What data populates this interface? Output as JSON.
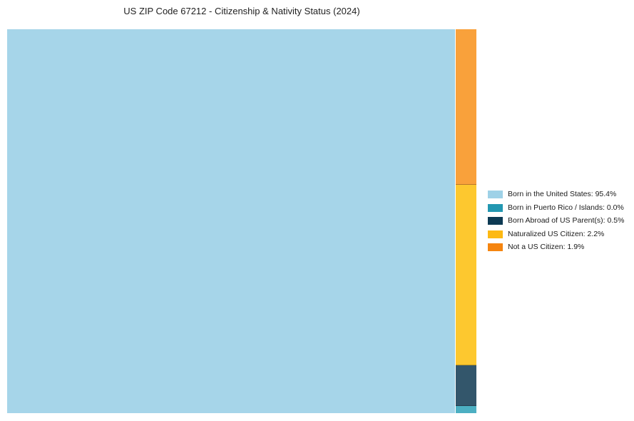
{
  "page": {
    "background": "#ffffff"
  },
  "chart_data": {
    "type": "treemap",
    "title": "US ZIP Code 67212 - Citizenship & Nativity Status (2024)",
    "legend_position": "right",
    "total_pct": 100,
    "items": [
      {
        "label": "Born in the United States",
        "value_pct": 95.4,
        "legend_text": "Born in the United States: 95.4%",
        "legend_color": "#9ED1E7",
        "fill_color": "#A6D5E9"
      },
      {
        "label": "Born in Puerto Rico / Islands",
        "value_pct": 0.0,
        "legend_text": "Born in Puerto Rico / Islands: 0.0%",
        "legend_color": "#2397B1",
        "fill_color": "#4CAFC2"
      },
      {
        "label": "Born Abroad of US Parent(s)",
        "value_pct": 0.5,
        "legend_text": "Born Abroad of US Parent(s): 0.5%",
        "legend_color": "#0D3A53",
        "fill_color": "#33566B"
      },
      {
        "label": "Naturalized US Citizen",
        "value_pct": 2.2,
        "legend_text": "Naturalized US Citizen: 2.2%",
        "legend_color": "#FDB913",
        "fill_color": "#FDC82F"
      },
      {
        "label": "Not a US Citizen",
        "value_pct": 1.9,
        "legend_text": "Not a US Citizen: 1.9%",
        "legend_color": "#F58510",
        "fill_color": "#F9A13B"
      }
    ]
  }
}
